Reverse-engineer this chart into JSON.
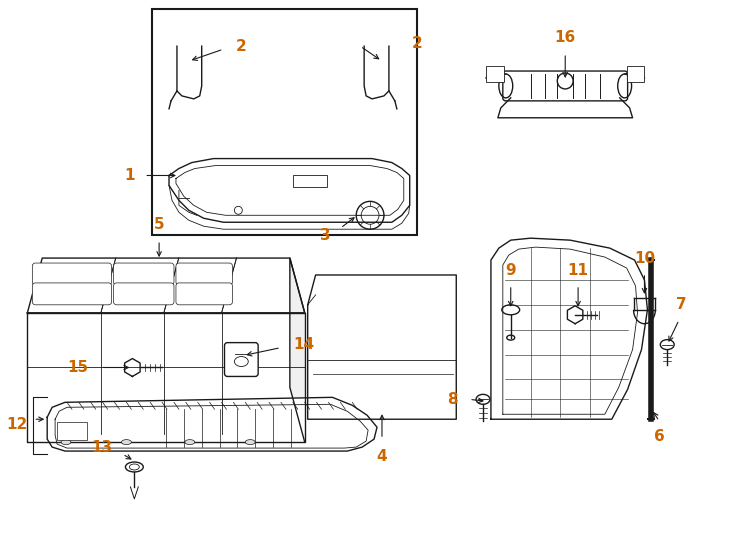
{
  "bg_color": "#ffffff",
  "line_color": "#1a1a1a",
  "label_color": "#cc6600",
  "fig_width": 7.34,
  "fig_height": 5.4,
  "dpi": 100
}
